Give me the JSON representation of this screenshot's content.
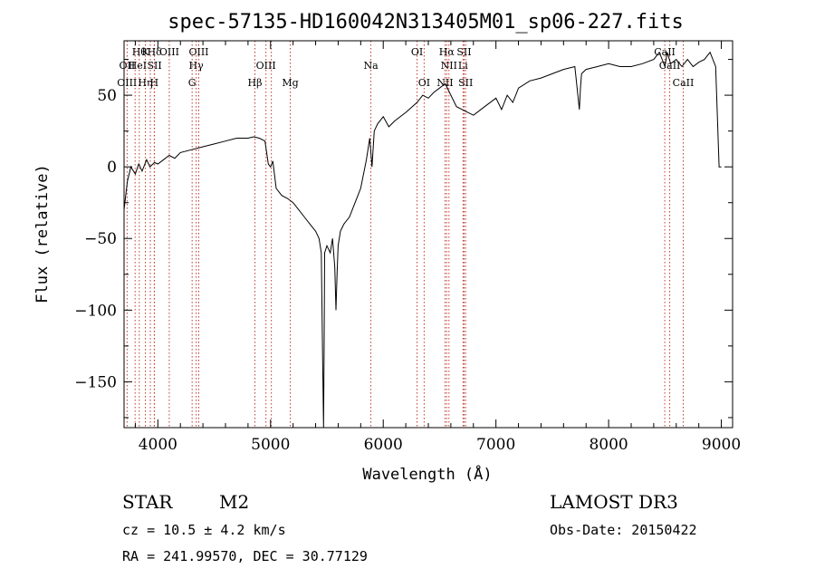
{
  "chart_data": {
    "type": "line",
    "title": "spec-57135-HD160042N313405M01_sp06-227.fits",
    "xlabel": "Wavelength (Å)",
    "ylabel": "Flux (relative)",
    "xlim": [
      3700,
      9100
    ],
    "ylim": [
      -182,
      88
    ],
    "xticks": [
      4000,
      5000,
      6000,
      7000,
      8000,
      9000
    ],
    "xtick_labels": [
      "4000",
      "5000",
      "6000",
      "7000",
      "8000",
      "9000"
    ],
    "yticks": [
      -150,
      -100,
      -50,
      0,
      50
    ],
    "ytick_labels": [
      "−150",
      "−100",
      "−50",
      "0",
      "50"
    ],
    "series": [
      {
        "x": [
          3700,
          3730,
          3760,
          3800,
          3830,
          3860,
          3900,
          3930,
          3970,
          4000,
          4050,
          4100,
          4150,
          4200,
          4300,
          4400,
          4500,
          4600,
          4700,
          4800,
          4850,
          4900,
          4950,
          4980,
          5000,
          5020,
          5050,
          5100,
          5150,
          5200,
          5250,
          5300,
          5350,
          5400,
          5430,
          5450,
          5460,
          5470,
          5475,
          5480,
          5500,
          5530,
          5550,
          5570,
          5580,
          5590,
          5600,
          5620,
          5650,
          5700,
          5750,
          5800,
          5850,
          5880,
          5900,
          5920,
          5950,
          6000,
          6050,
          6100,
          6200,
          6300,
          6350,
          6400,
          6450,
          6500,
          6550,
          6600,
          6650,
          6700,
          6750,
          6800,
          6900,
          7000,
          7050,
          7100,
          7150,
          7200,
          7300,
          7400,
          7500,
          7600,
          7700,
          7740,
          7750,
          7760,
          7800,
          7900,
          8000,
          8100,
          8200,
          8300,
          8400,
          8450,
          8500,
          8520,
          8550,
          8600,
          8650,
          8700,
          8750,
          8800,
          8850,
          8900,
          8950,
          8980,
          9000
        ],
        "y": [
          -30,
          -10,
          0,
          -5,
          2,
          -3,
          5,
          0,
          3,
          2,
          5,
          8,
          6,
          10,
          12,
          14,
          16,
          18,
          20,
          20,
          21,
          20,
          18,
          2,
          0,
          4,
          -15,
          -20,
          -22,
          -25,
          -30,
          -35,
          -40,
          -45,
          -50,
          -60,
          -120,
          -182,
          -130,
          -60,
          -55,
          -60,
          -50,
          -70,
          -100,
          -75,
          -55,
          -45,
          -40,
          -35,
          -25,
          -15,
          5,
          20,
          0,
          25,
          30,
          35,
          28,
          32,
          38,
          45,
          50,
          48,
          52,
          55,
          58,
          50,
          42,
          40,
          38,
          36,
          42,
          48,
          40,
          50,
          45,
          55,
          60,
          62,
          65,
          68,
          70,
          40,
          55,
          65,
          68,
          70,
          72,
          70,
          70,
          72,
          75,
          80,
          70,
          80,
          72,
          75,
          70,
          75,
          70,
          73,
          75,
          80,
          70,
          0,
          0
        ]
      }
    ],
    "line_labels": [
      {
        "x": 3835,
        "row": 0,
        "text": "Hθ"
      },
      {
        "x": 3890,
        "row": 0,
        "text": "K"
      },
      {
        "x": 3970,
        "row": 0,
        "text": "Hδ"
      },
      {
        "x": 4101,
        "row": 0,
        "text": "OIII"
      },
      {
        "x": 4363,
        "row": 0,
        "text": "OIII"
      },
      {
        "x": 6300,
        "row": 0,
        "text": "OI"
      },
      {
        "x": 6563,
        "row": 0,
        "text": "Hα"
      },
      {
        "x": 6717,
        "row": 0,
        "text": "SII"
      },
      {
        "x": 8498,
        "row": 0,
        "text": "CaII"
      },
      {
        "x": 3727,
        "row": 1,
        "text": "OII"
      },
      {
        "x": 3820,
        "row": 1,
        "text": "HeI"
      },
      {
        "x": 3970,
        "row": 1,
        "text": "SII"
      },
      {
        "x": 4340,
        "row": 1,
        "text": "Hγ"
      },
      {
        "x": 4959,
        "row": 1,
        "text": "OIII"
      },
      {
        "x": 6583,
        "row": 1,
        "text": "NII"
      },
      {
        "x": 6708,
        "row": 1,
        "text": "Li"
      },
      {
        "x": 8542,
        "row": 1,
        "text": "CaII"
      },
      {
        "x": 3726,
        "row": 2,
        "text": "OIII"
      },
      {
        "x": 3889,
        "row": 2,
        "text": "Hη"
      },
      {
        "x": 3968,
        "row": 2,
        "text": "H"
      },
      {
        "x": 4304,
        "row": 2,
        "text": "G"
      },
      {
        "x": 4861,
        "row": 2,
        "text": "Hβ"
      },
      {
        "x": 5175,
        "row": 2,
        "text": "Mg"
      },
      {
        "x": 6363,
        "row": 2,
        "text": "OI"
      },
      {
        "x": 6548,
        "row": 2,
        "text": "NII"
      },
      {
        "x": 6731,
        "row": 2,
        "text": "SII"
      },
      {
        "x": 8662,
        "row": 2,
        "text": "CaII"
      },
      {
        "x": 5890,
        "row": 1,
        "text": "Na"
      }
    ],
    "line_x": [
      3727,
      3798,
      3835,
      3889,
      3933,
      3968,
      3970,
      4101,
      4304,
      4340,
      4363,
      4861,
      4959,
      5007,
      5175,
      5890,
      6300,
      6363,
      6548,
      6563,
      6583,
      6708,
      6717,
      6731,
      8498,
      8542,
      8662
    ],
    "grid": false
  },
  "info": {
    "object_class": "STAR",
    "subclass": "M2",
    "survey": "LAMOST DR3",
    "cz": "cz = 10.5 ± 4.2 km/s",
    "obs_date": "Obs-Date: 20150422",
    "coords": "RA = 241.99570, DEC =  30.77129"
  }
}
